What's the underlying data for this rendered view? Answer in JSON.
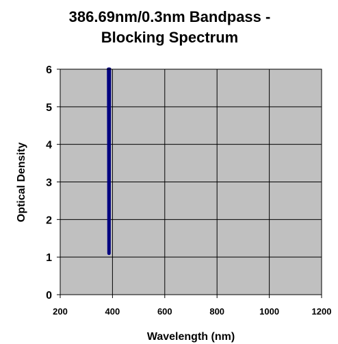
{
  "chart_data": {
    "type": "line",
    "title_line1": "386.69nm/0.3nm Bandpass -",
    "title_line2": "Blocking Spectrum",
    "xlabel": "Wavelength (nm)",
    "ylabel": "Optical Density",
    "xlim": [
      200,
      1200
    ],
    "ylim": [
      0,
      6
    ],
    "xticks": [
      200,
      400,
      600,
      800,
      1000,
      1200
    ],
    "yticks": [
      0,
      1,
      2,
      3,
      4,
      5,
      6
    ],
    "grid": true,
    "legend": "none",
    "plot_background": "#c0c0c0",
    "series": [
      {
        "color": "#000080",
        "x": [
          384.5,
          385.2,
          386.0,
          386.69,
          387.4,
          388.2,
          389.0
        ],
        "y": [
          6,
          6,
          4.0,
          1.1,
          4.0,
          6,
          6
        ]
      }
    ]
  }
}
